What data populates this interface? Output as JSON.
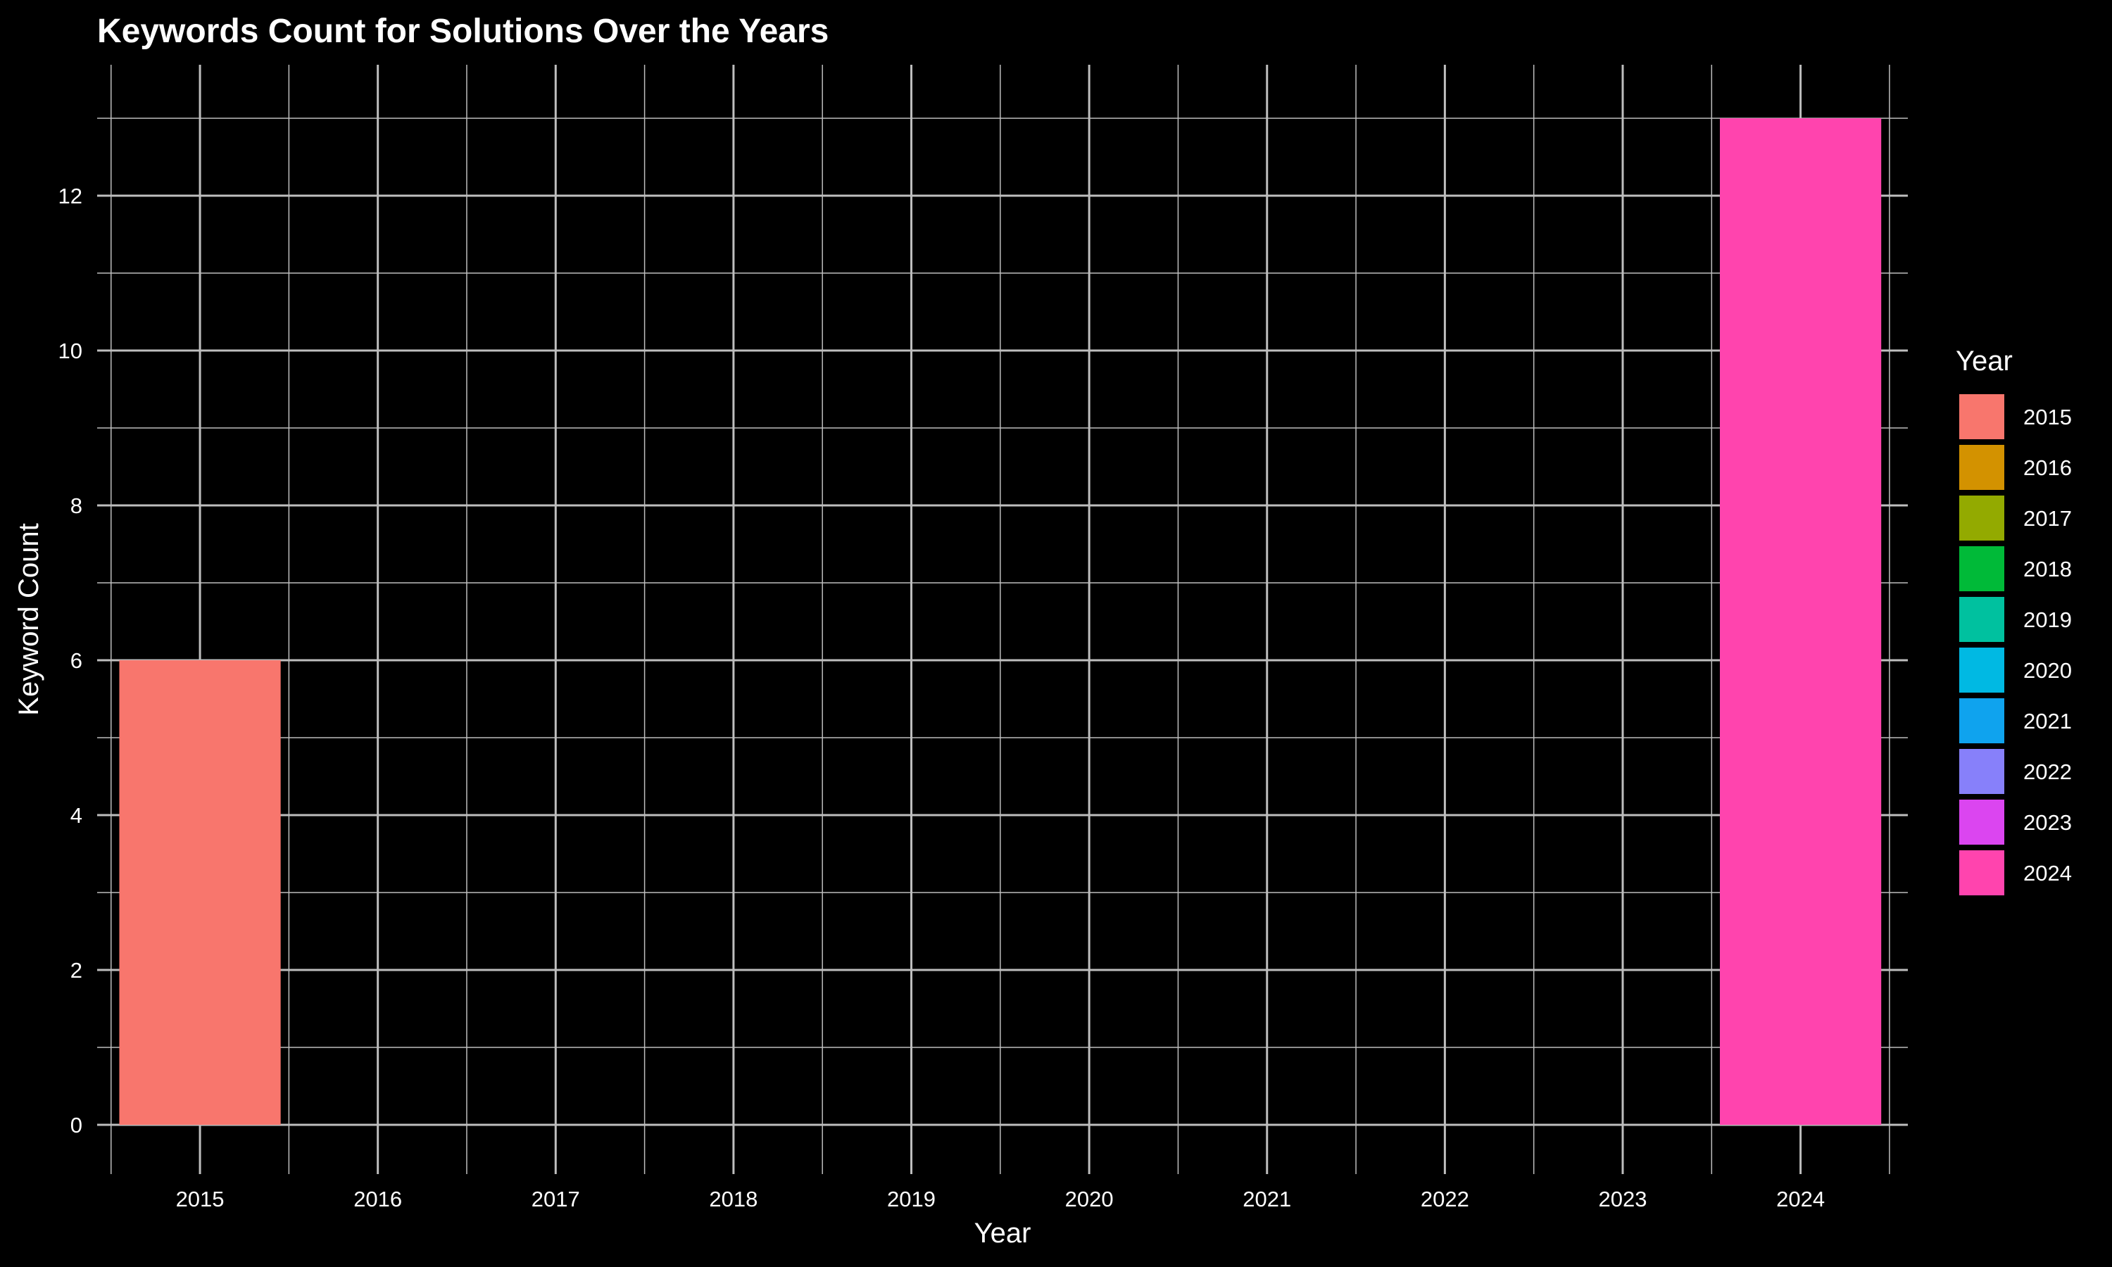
{
  "chart_data": {
    "type": "bar",
    "title": "Keywords Count for Solutions Over the Years",
    "xlabel": "Year",
    "ylabel": "Keyword Count",
    "categories": [
      "2015",
      "2016",
      "2017",
      "2018",
      "2019",
      "2020",
      "2021",
      "2022",
      "2023",
      "2024"
    ],
    "values": [
      6,
      0,
      0,
      0,
      0,
      0,
      0,
      0,
      0,
      13
    ],
    "ylim": [
      0,
      13
    ],
    "yticks": [
      0,
      2,
      4,
      6,
      8,
      10,
      12
    ],
    "grid": true,
    "legend": {
      "title": "Year",
      "placement": "right",
      "entries": [
        {
          "label": "2015",
          "color": "#F8766D"
        },
        {
          "label": "2016",
          "color": "#D39200"
        },
        {
          "label": "2017",
          "color": "#93AA00"
        },
        {
          "label": "2018",
          "color": "#00BA38"
        },
        {
          "label": "2019",
          "color": "#00C19F"
        },
        {
          "label": "2020",
          "color": "#00B9E3"
        },
        {
          "label": "2021",
          "color": "#0FA3EE"
        },
        {
          "label": "2022",
          "color": "#8780FA"
        },
        {
          "label": "2023",
          "color": "#DB45F0"
        },
        {
          "label": "2024",
          "color": "#FF44AE"
        }
      ]
    },
    "colors": {
      "background": "#000000",
      "grid": "#bebebe",
      "text": "#ffffff"
    }
  }
}
